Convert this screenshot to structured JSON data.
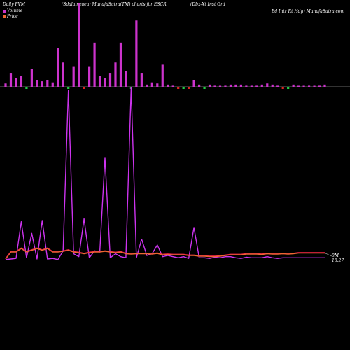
{
  "header": {
    "col1": "Daily PVM",
    "col2": "(Sdalameaea) MunafaSutra(TM) charts for ESCR",
    "col3": "(Dbx-Xt Inst Grd",
    "col4": "Bd Intr Rt Hdg) MunafaSutra.com"
  },
  "legend": {
    "volume_label": "Volume",
    "price_label": "Price",
    "volume_color": "#cc33cc",
    "price_color": "#ee6633"
  },
  "end_labels": {
    "line1": "0M",
    "line2": "18.27"
  },
  "chart_data": {
    "type": "line",
    "title": "",
    "series": [
      {
        "name": "Volume",
        "kind": "bar",
        "color": "#cc33cc",
        "direction": [
          "up",
          "up",
          "up",
          "up",
          "dn",
          "up",
          "up",
          "up",
          "up",
          "up",
          "up",
          "up",
          "dn",
          "up",
          "up",
          "dn",
          "up",
          "up",
          "up",
          "up",
          "up",
          "up",
          "up",
          "up",
          "dn",
          "up",
          "up",
          "up",
          "up",
          "up",
          "up",
          "up",
          "up",
          "dn",
          "dn",
          "dn",
          "up",
          "up",
          "dn",
          "up",
          "up",
          "up",
          "up",
          "up",
          "up",
          "up",
          "up",
          "up",
          "up",
          "up",
          "up",
          "up",
          "up",
          "dn",
          "dn",
          "up",
          "up",
          "up",
          "up",
          "up",
          "up",
          "up"
        ],
        "values": [
          3,
          12,
          8,
          10,
          7,
          16,
          6,
          5,
          6,
          4,
          35,
          22,
          70,
          18,
          76,
          25,
          18,
          40,
          10,
          8,
          12,
          22,
          40,
          14,
          8,
          60,
          12,
          2,
          4,
          3,
          20,
          2,
          1,
          1,
          1,
          0,
          6,
          2,
          3,
          2,
          1,
          0,
          1,
          2,
          2,
          2,
          1,
          1,
          1,
          2,
          3,
          2,
          1,
          1,
          2,
          2,
          0,
          0,
          1,
          0,
          1,
          2
        ]
      },
      {
        "name": "Price",
        "kind": "line",
        "color": "#ee6633",
        "values": [
          18.1,
          18.3,
          18.3,
          18.4,
          18.3,
          18.35,
          18.4,
          18.35,
          18.4,
          18.3,
          18.3,
          18.32,
          18.35,
          18.3,
          18.28,
          18.25,
          18.28,
          18.3,
          18.3,
          18.32,
          18.3,
          18.28,
          18.3,
          18.25,
          18.24,
          18.25,
          18.25,
          18.25,
          18.24,
          18.26,
          18.22,
          18.23,
          18.22,
          18.22,
          18.22,
          18.2,
          18.2,
          18.18,
          18.18,
          18.17,
          18.17,
          18.18,
          18.2,
          18.22,
          18.22,
          18.22,
          18.24,
          18.24,
          18.24,
          18.23,
          18.25,
          18.24,
          18.24,
          18.25,
          18.24,
          18.25,
          18.27,
          18.27,
          18.27,
          18.27,
          18.27,
          18.27
        ]
      }
    ],
    "pvm_line": {
      "name": "",
      "color": "#cc33ee",
      "values": [
        5,
        6,
        7,
        70,
        8,
        50,
        6,
        72,
        6,
        7,
        5,
        20,
        295,
        15,
        10,
        75,
        8,
        20,
        18,
        180,
        8,
        15,
        10,
        8,
        300,
        8,
        40,
        12,
        15,
        30,
        10,
        12,
        10,
        8,
        10,
        7,
        60,
        8,
        8,
        7,
        9,
        8,
        10,
        10,
        8,
        7,
        9,
        8,
        8,
        8,
        10,
        8,
        7,
        8,
        8,
        8,
        8,
        8,
        8,
        8,
        8,
        8
      ]
    }
  }
}
